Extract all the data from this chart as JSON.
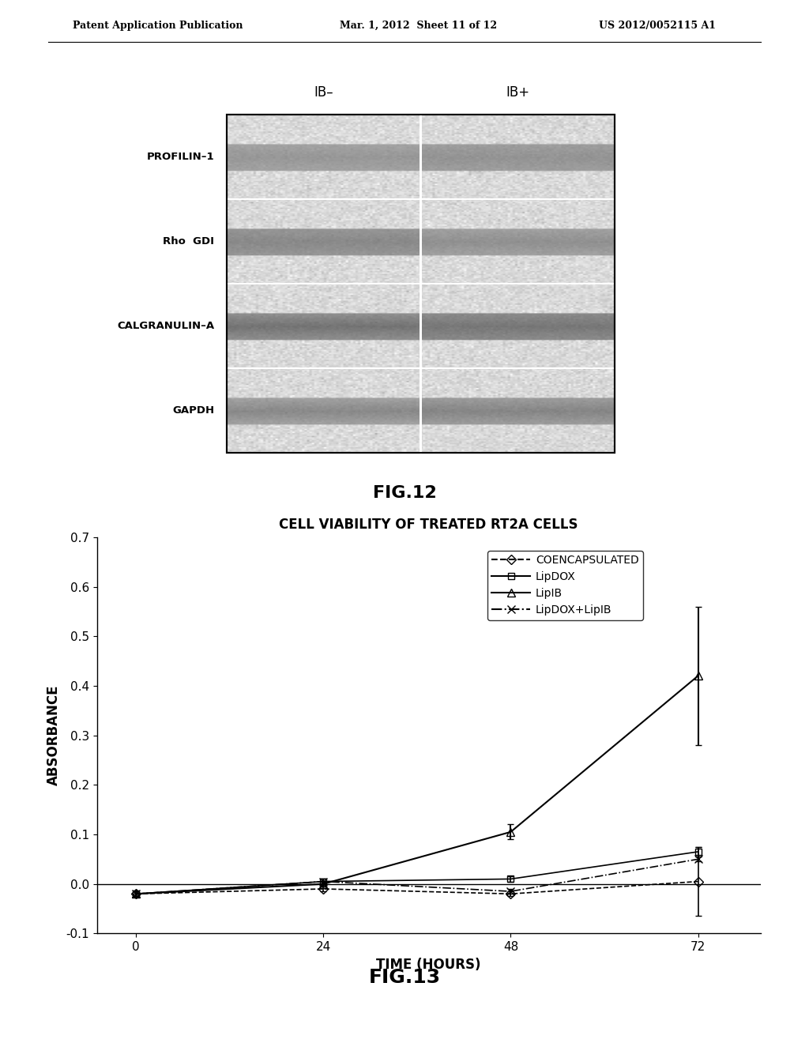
{
  "page_header_left": "Patent Application Publication",
  "page_header_mid": "Mar. 1, 2012  Sheet 11 of 12",
  "page_header_right": "US 2012/0052115 A1",
  "fig12_title": "FIG.12",
  "fig12_col_labels": [
    "IB–",
    "IB+"
  ],
  "fig12_row_labels": [
    "PROFILIN–1",
    "Rho  GDI",
    "CALGRANULIN–A",
    "GAPDH"
  ],
  "fig13_title": "CELL VIABILITY OF TREATED RT2A CELLS",
  "fig13_xlabel": "TIME (HOURS)",
  "fig13_ylabel": "ABSORBANCE",
  "fig13_caption": "FIG.13",
  "fig13_xvals": [
    0,
    24,
    48,
    72
  ],
  "fig13_xticks": [
    0,
    24,
    48,
    72
  ],
  "fig13_ylim": [
    -0.1,
    0.7
  ],
  "fig13_yticks": [
    -0.1,
    0.0,
    0.1,
    0.2,
    0.3,
    0.4,
    0.5,
    0.6,
    0.7
  ],
  "series": {
    "coencapsulated": {
      "label": "COENCAPSULATED",
      "x": [
        0,
        24,
        48,
        72
      ],
      "y": [
        -0.02,
        -0.01,
        -0.02,
        0.005
      ],
      "yerr": [
        0.005,
        0.005,
        0.005,
        0.07
      ],
      "linestyle": "--",
      "marker": "o",
      "marker_size": 6,
      "color": "#000000",
      "fillstyle": "none"
    },
    "lipdox": {
      "label": "LipDOX",
      "x": [
        0,
        24,
        48,
        72
      ],
      "y": [
        -0.02,
        0.005,
        0.01,
        0.065
      ],
      "yerr": [
        0.005,
        0.005,
        0.005,
        0.01
      ],
      "linestyle": "-",
      "marker": "s",
      "marker_size": 6,
      "color": "#000000",
      "fillstyle": "none"
    },
    "lipib": {
      "label": "LipIB",
      "x": [
        0,
        24,
        48,
        72
      ],
      "y": [
        -0.02,
        0.0,
        0.105,
        0.42
      ],
      "yerr": [
        0.005,
        0.005,
        0.015,
        0.14
      ],
      "linestyle": "-",
      "marker": "^",
      "marker_size": 7,
      "color": "#000000",
      "fillstyle": "none"
    },
    "lipdox_lipib": {
      "label": "LipDOX+LipIB",
      "x": [
        0,
        24,
        48,
        72
      ],
      "y": [
        -0.02,
        0.005,
        -0.015,
        0.05
      ],
      "yerr": [
        0.005,
        0.005,
        0.005,
        0.005
      ],
      "linestyle": "-.",
      "marker": "x",
      "marker_size": 7,
      "color": "#000000",
      "fillstyle": "full"
    }
  },
  "bg_color": "#ffffff",
  "text_color": "#000000"
}
